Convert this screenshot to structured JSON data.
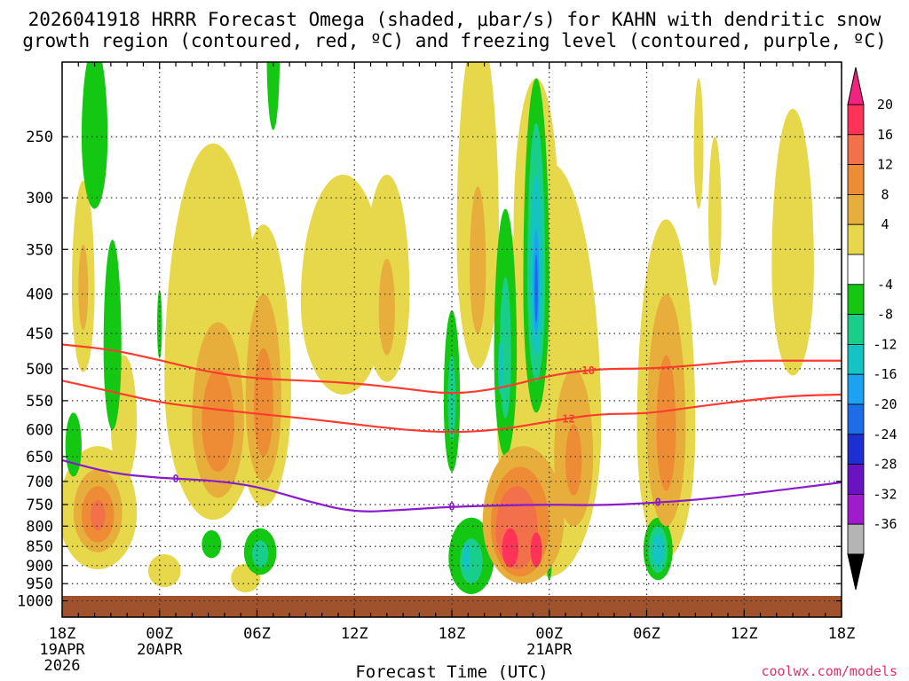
{
  "chart_data": {
    "type": "time-height cross section",
    "title_line1": "2026041918 HRRR Forecast Omega (shaded, μbar/s) for KAHN with dendritic snow",
    "title_line2": "growth region (contoured, red, ºC) and freezing level (contoured, purple, ºC)",
    "xlabel": "Forecast Time (UTC)",
    "credit": "coolwx.com/models",
    "x_ticks": [
      {
        "hour": 0,
        "label": "18Z",
        "sub1": "19APR",
        "sub2": "2026"
      },
      {
        "hour": 6,
        "label": "00Z",
        "sub1": "20APR",
        "sub2": ""
      },
      {
        "hour": 12,
        "label": "06Z",
        "sub1": "",
        "sub2": ""
      },
      {
        "hour": 18,
        "label": "12Z",
        "sub1": "",
        "sub2": ""
      },
      {
        "hour": 24,
        "label": "18Z",
        "sub1": "",
        "sub2": ""
      },
      {
        "hour": 30,
        "label": "00Z",
        "sub1": "21APR",
        "sub2": ""
      },
      {
        "hour": 36,
        "label": "06Z",
        "sub1": "",
        "sub2": ""
      },
      {
        "hour": 42,
        "label": "12Z",
        "sub1": "",
        "sub2": ""
      },
      {
        "hour": 48,
        "label": "18Z",
        "sub1": "",
        "sub2": ""
      }
    ],
    "x_range_hours": [
      0,
      48
    ],
    "y_ticks_hpa": [
      250,
      300,
      350,
      400,
      450,
      500,
      550,
      600,
      650,
      700,
      750,
      800,
      850,
      900,
      950,
      1000
    ],
    "y_range_hpa": [
      200,
      1050
    ],
    "colorbar": {
      "labels": [
        "20",
        "16",
        "12",
        "8",
        "4",
        "-4",
        "-8",
        "-12",
        "-16",
        "-20",
        "-24",
        "-28",
        "-32",
        "-36"
      ],
      "colors_top_to_bottom": [
        "#ff3358",
        "#f2704a",
        "#ee8c36",
        "#e7ae3c",
        "#e6d84a",
        "#ffffff",
        "#13c713",
        "#19cd8a",
        "#14c4c4",
        "#1ca2f2",
        "#1d6de8",
        "#1c2fd2",
        "#6a13c4",
        "#9f1bcc",
        "#b4b4b4"
      ],
      "top_arrow_color": "#f0247f",
      "bottom_arrow_color": "#000000"
    },
    "contours": [
      {
        "name": "-18 C",
        "label": "-18",
        "color": "#ff3b30",
        "points": [
          [
            0,
            465
          ],
          [
            3,
            472
          ],
          [
            6,
            487
          ],
          [
            9,
            505
          ],
          [
            12,
            515
          ],
          [
            15,
            518
          ],
          [
            18,
            522
          ],
          [
            21,
            530
          ],
          [
            24,
            540
          ],
          [
            27,
            530
          ],
          [
            30,
            510
          ],
          [
            33,
            500
          ],
          [
            36,
            500
          ],
          [
            39,
            495
          ],
          [
            42,
            488
          ],
          [
            45,
            488
          ],
          [
            48,
            488
          ]
        ]
      },
      {
        "name": "-12 C",
        "label": "-12",
        "color": "#ff3b30",
        "points": [
          [
            0,
            518
          ],
          [
            3,
            535
          ],
          [
            6,
            553
          ],
          [
            9,
            563
          ],
          [
            12,
            572
          ],
          [
            15,
            580
          ],
          [
            18,
            590
          ],
          [
            21,
            600
          ],
          [
            24,
            605
          ],
          [
            27,
            600
          ],
          [
            30,
            585
          ],
          [
            33,
            572
          ],
          [
            36,
            572
          ],
          [
            39,
            560
          ],
          [
            42,
            550
          ],
          [
            45,
            542
          ],
          [
            48,
            540
          ]
        ]
      },
      {
        "name": "0 C freezing level",
        "label": "0",
        "color": "#8a1bcc",
        "points": [
          [
            0,
            657
          ],
          [
            3,
            683
          ],
          [
            6,
            693
          ],
          [
            9,
            697
          ],
          [
            12,
            710
          ],
          [
            15,
            742
          ],
          [
            18,
            768
          ],
          [
            21,
            762
          ],
          [
            24,
            755
          ],
          [
            27,
            752
          ],
          [
            30,
            750
          ],
          [
            33,
            752
          ],
          [
            36,
            747
          ],
          [
            39,
            740
          ],
          [
            42,
            728
          ],
          [
            45,
            715
          ],
          [
            48,
            702
          ]
        ]
      }
    ],
    "omega_regions": [
      {
        "name": "ascent 20-21Z upper",
        "hour": 1.3,
        "p": 395,
        "hw": 0.7,
        "hp": 110,
        "level": 4
      },
      {
        "name": "ascent 20-21Z upper core",
        "hour": 1.3,
        "p": 395,
        "hw": 0.3,
        "hp": 50,
        "level": 8
      },
      {
        "name": "ascent 21Z low",
        "hour": 2.2,
        "p": 770,
        "hw": 2.4,
        "hp": 140,
        "level": 4
      },
      {
        "name": "ascent 21Z low",
        "hour": 2.2,
        "p": 770,
        "hw": 1.5,
        "hp": 95,
        "level": 8
      },
      {
        "name": "ascent 21Z low",
        "hour": 2.2,
        "p": 775,
        "hw": 1.0,
        "hp": 65,
        "level": 12
      },
      {
        "name": "ascent 21Z low core",
        "hour": 2.2,
        "p": 775,
        "hw": 0.45,
        "hp": 35,
        "level": 16
      },
      {
        "name": "ascent 22Z",
        "hour": 3.8,
        "p": 590,
        "hw": 0.8,
        "hp": 110,
        "level": 4
      },
      {
        "name": "ascent 00Z",
        "hour": 6.3,
        "p": 915,
        "hw": 1.0,
        "hp": 45,
        "level": 4
      },
      {
        "name": "ascent 03Z broad",
        "hour": 9.3,
        "p": 520,
        "hw": 3.0,
        "hp": 265,
        "level": 4
      },
      {
        "name": "ascent 03Z",
        "hour": 9.6,
        "p": 585,
        "hw": 1.6,
        "hp": 150,
        "level": 8
      },
      {
        "name": "ascent 03Z",
        "hour": 9.6,
        "p": 590,
        "hw": 1.0,
        "hp": 90,
        "level": 12
      },
      {
        "name": "ascent 06Z",
        "hour": 12.4,
        "p": 540,
        "hw": 1.7,
        "hp": 215,
        "level": 4
      },
      {
        "name": "ascent 06Z",
        "hour": 12.4,
        "p": 550,
        "hw": 1.1,
        "hp": 150,
        "level": 8
      },
      {
        "name": "ascent 06Z",
        "hour": 12.4,
        "p": 560,
        "hw": 0.6,
        "hp": 90,
        "level": 12
      },
      {
        "name": "ascent 05Z low",
        "hour": 11.3,
        "p": 935,
        "hw": 0.9,
        "hp": 40,
        "level": 4
      },
      {
        "name": "ascent 12Z upper",
        "hour": 17.3,
        "p": 410,
        "hw": 2.6,
        "hp": 130,
        "level": 4
      },
      {
        "name": "ascent 14Z",
        "hour": 20.0,
        "p": 400,
        "hw": 1.4,
        "hp": 120,
        "level": 4
      },
      {
        "name": "ascent 14Z",
        "hour": 20.0,
        "p": 420,
        "hw": 0.5,
        "hp": 60,
        "level": 8
      },
      {
        "name": "ascent 19Z upper",
        "hour": 25.6,
        "p": 340,
        "hw": 1.3,
        "hp": 160,
        "level": 4
      },
      {
        "name": "ascent 19Z upper",
        "hour": 25.6,
        "p": 370,
        "hw": 0.5,
        "hp": 80,
        "level": 8
      },
      {
        "name": "ascent 20Z upper",
        "hour": 29.2,
        "p": 330,
        "hw": 1.4,
        "hp": 120,
        "level": 4
      },
      {
        "name": "ascent 22Z mid",
        "hour": 30.0,
        "p": 600,
        "hw": 3.2,
        "hp": 330,
        "level": 4
      },
      {
        "name": "ascent 22Z mid",
        "hour": 28.4,
        "p": 790,
        "hw": 2.5,
        "hp": 160,
        "level": 8
      },
      {
        "name": "ascent 22Z mid",
        "hour": 28.2,
        "p": 800,
        "hw": 1.8,
        "hp": 130,
        "level": 12
      },
      {
        "name": "ascent 22Z mid",
        "hour": 28.0,
        "p": 810,
        "hw": 1.3,
        "hp": 100,
        "level": 16
      },
      {
        "name": "ascent 00Z 21APR",
        "hour": 31.5,
        "p": 650,
        "hw": 1.2,
        "hp": 150,
        "level": 8
      },
      {
        "name": "ascent 01Z",
        "hour": 31.5,
        "p": 660,
        "hw": 0.5,
        "hp": 70,
        "level": 12
      },
      {
        "name": "ascent 07Z",
        "hour": 37.2,
        "p": 600,
        "hw": 1.8,
        "hp": 280,
        "level": 4
      },
      {
        "name": "ascent 07Z",
        "hour": 37.2,
        "p": 600,
        "hw": 1.2,
        "hp": 200,
        "level": 8
      },
      {
        "name": "ascent 07Z",
        "hour": 37.2,
        "p": 600,
        "hw": 0.6,
        "hp": 120,
        "level": 12
      },
      {
        "name": "ascent 15Z upper",
        "hour": 45.0,
        "p": 370,
        "hw": 1.3,
        "hp": 140,
        "level": 4
      },
      {
        "name": "ascent 09Z upper",
        "hour": 39.2,
        "p": 260,
        "hw": 0.3,
        "hp": 50,
        "level": 4
      },
      {
        "name": "ascent 10Z upper",
        "hour": 40.2,
        "p": 320,
        "hw": 0.4,
        "hp": 70,
        "level": 4
      },
      {
        "name": "descent 20Z upper",
        "hour": 2.0,
        "p": 250,
        "hw": 0.8,
        "hp": 60,
        "level": -4
      },
      {
        "name": "descent 21Z",
        "hour": 3.1,
        "p": 470,
        "hw": 0.55,
        "hp": 130,
        "level": -4
      },
      {
        "name": "descent 19Z low",
        "hour": 0.7,
        "p": 630,
        "hw": 0.5,
        "hp": 60,
        "level": -4
      },
      {
        "name": "descent 00Z",
        "hour": 6.0,
        "p": 440,
        "hw": 0.15,
        "hp": 45,
        "level": -4
      },
      {
        "name": "descent 03Z upper",
        "hour": 13.0,
        "p": 195,
        "hw": 0.4,
        "hp": 50,
        "level": -4
      },
      {
        "name": "descent 02Z low",
        "hour": 9.2,
        "p": 845,
        "hw": 0.6,
        "hp": 35,
        "level": -4
      },
      {
        "name": "descent 06Z low",
        "hour": 12.2,
        "p": 865,
        "hw": 1.0,
        "hp": 60,
        "level": -4
      },
      {
        "name": "descent 06Z low",
        "hour": 12.2,
        "p": 870,
        "hw": 0.5,
        "hp": 35,
        "level": -8
      },
      {
        "name": "descent 18Z",
        "hour": 24.0,
        "p": 550,
        "hw": 0.5,
        "hp": 130,
        "level": -4
      },
      {
        "name": "descent 18Z",
        "hour": 24.0,
        "p": 550,
        "hw": 0.25,
        "hp": 70,
        "level": -8
      },
      {
        "name": "descent 19Z low",
        "hour": 25.2,
        "p": 880,
        "hw": 1.4,
        "hp": 100,
        "level": -4
      },
      {
        "name": "descent 19Z low",
        "hour": 25.2,
        "p": 890,
        "hw": 0.7,
        "hp": 60,
        "level": -8
      },
      {
        "name": "descent 20Z mid",
        "hour": 27.3,
        "p": 480,
        "hw": 0.7,
        "hp": 170,
        "level": -4
      },
      {
        "name": "descent 20Z mid",
        "hour": 27.3,
        "p": 480,
        "hw": 0.35,
        "hp": 100,
        "level": -8
      },
      {
        "name": "descent 23Z column",
        "hour": 29.2,
        "p": 390,
        "hw": 0.8,
        "hp": 180,
        "level": -4
      },
      {
        "name": "descent 23Z column",
        "hour": 29.2,
        "p": 380,
        "hw": 0.55,
        "hp": 140,
        "level": -8
      },
      {
        "name": "descent 23Z column",
        "hour": 29.2,
        "p": 380,
        "hw": 0.35,
        "hp": 100,
        "level": -12
      },
      {
        "name": "descent 23Z core",
        "hour": 29.2,
        "p": 390,
        "hw": 0.2,
        "hp": 60,
        "level": -16
      },
      {
        "name": "descent 23Z core",
        "hour": 29.2,
        "p": 395,
        "hw": 0.1,
        "hp": 40,
        "level": -20
      },
      {
        "name": "descent 07Z low",
        "hour": 36.7,
        "p": 860,
        "hw": 0.9,
        "hp": 80,
        "level": -4
      },
      {
        "name": "descent 07Z low",
        "hour": 36.7,
        "p": 860,
        "hw": 0.6,
        "hp": 60,
        "level": -8
      },
      {
        "name": "descent 07Z low",
        "hour": 36.7,
        "p": 860,
        "hw": 0.35,
        "hp": 40,
        "level": -12
      },
      {
        "name": "descent 01Z low",
        "hour": 30.0,
        "p": 900,
        "hw": 0.15,
        "hp": 40,
        "level": -4
      },
      {
        "name": "strong ascent 22Z low",
        "hour": 27.6,
        "p": 855,
        "hw": 0.5,
        "hp": 50,
        "level": 20
      },
      {
        "name": "strong ascent 23Z low",
        "hour": 29.2,
        "p": 860,
        "hw": 0.35,
        "hp": 45,
        "level": 20
      },
      {
        "name": "descent 20Z low band",
        "hour": 24.9,
        "p": 880,
        "hw": 0.2,
        "hp": 40,
        "level": -12
      },
      {
        "name": "descent 20Z mid band",
        "hour": 27.0,
        "p": 500,
        "hw": 0.15,
        "hp": 40,
        "level": -12
      }
    ],
    "surface_color": "#a0522d"
  }
}
